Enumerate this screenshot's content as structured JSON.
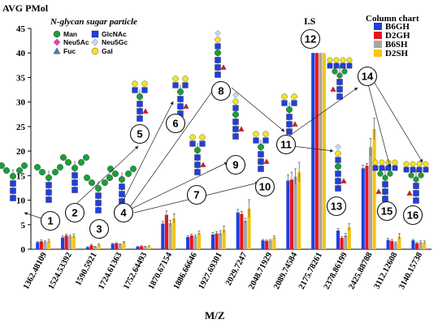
{
  "chart_data": {
    "type": "bar",
    "ylabel": "AVG PMol",
    "xlabel": "M/Z",
    "ylim": [
      0,
      45
    ],
    "yticks": [
      0,
      5,
      10,
      15,
      20,
      25,
      30,
      35,
      40,
      45
    ],
    "grid": false,
    "legend_title": "Column chart",
    "legend_position": "top-right",
    "categories": [
      "1362.48109",
      "1524.53392",
      "1590.5921",
      "1724.61363",
      "1752.64493",
      "1870.67154",
      "1886.66646",
      "1927.69301",
      "2029.7247",
      "2048.71929",
      "2089.74584",
      "2175.78261",
      "2378.86199",
      "2425.88788",
      "3112.12608",
      "3140.15738"
    ],
    "series": [
      {
        "name": "B6GH",
        "color": "#1f3fe0",
        "values": [
          1.4,
          2.4,
          0.4,
          1.1,
          0.5,
          5.2,
          2.5,
          3.0,
          7.5,
          1.8,
          14.0,
          40.0,
          3.8,
          16.5,
          1.9,
          1.8
        ]
      },
      {
        "name": "D2GH",
        "color": "#e8141c",
        "values": [
          1.6,
          2.8,
          0.8,
          1.2,
          0.6,
          7.0,
          2.8,
          3.2,
          7.2,
          1.7,
          14.2,
          40.0,
          2.3,
          17.0,
          1.7,
          1.2
        ]
      },
      {
        "name": "B6SH",
        "color": "#a6a6a6",
        "values": [
          1.5,
          2.6,
          0.5,
          1.0,
          0.5,
          5.3,
          2.6,
          3.3,
          5.8,
          1.8,
          14.8,
          40.0,
          2.8,
          20.8,
          1.3,
          1.4
        ]
      },
      {
        "name": "D2SH",
        "color": "#f5c518",
        "values": [
          1.7,
          2.7,
          0.9,
          1.4,
          0.6,
          6.3,
          3.3,
          4.0,
          8.3,
          2.4,
          15.7,
          40.0,
          4.5,
          24.5,
          2.6,
          1.4
        ]
      }
    ],
    "errors": [
      [
        0.2,
        0.3,
        0.1,
        0.1,
        0.1,
        0.5,
        0.3,
        0.4,
        0.6,
        0.2,
        1.2,
        0,
        0.4,
        0.6,
        0.3,
        0.2
      ],
      [
        0.3,
        0.3,
        0.2,
        0.1,
        0.1,
        0.8,
        0.3,
        0.4,
        0.5,
        0.2,
        1.5,
        0,
        0.3,
        0.5,
        0.3,
        0.2
      ],
      [
        0.2,
        0.3,
        0.1,
        0.1,
        0.1,
        0.6,
        0.3,
        0.5,
        0.5,
        0.2,
        1.6,
        0,
        0.4,
        1.8,
        0.2,
        0.3
      ],
      [
        0.3,
        0.4,
        0.2,
        0.2,
        0.1,
        0.9,
        0.4,
        0.7,
        1.8,
        0.3,
        2.0,
        0,
        0.7,
        2.2,
        0.6,
        0.3
      ]
    ],
    "annotations": [
      "1",
      "2",
      "3",
      "4",
      "5",
      "6",
      "7",
      "8",
      "9",
      "10",
      "11",
      "12",
      "13",
      "14",
      "15",
      "16"
    ],
    "is_label": "I.S"
  },
  "glycan_legend": {
    "title": "N-glycan sugar particle",
    "items": [
      {
        "label": "Man",
        "shape": "circle",
        "color": "#1a9e3a"
      },
      {
        "label": "GlcNAc",
        "shape": "square",
        "color": "#1f3fe0"
      },
      {
        "label": "Neu5Ac",
        "shape": "diamond",
        "color": "#e83ab8"
      },
      {
        "label": "Neu5Gc",
        "shape": "diamond",
        "color": "#c8d8ee"
      },
      {
        "label": "Fuc",
        "shape": "triangle",
        "color": "#4a74c8"
      },
      {
        "label": "Gal",
        "shape": "circle",
        "color": "#f5e61a"
      }
    ]
  }
}
